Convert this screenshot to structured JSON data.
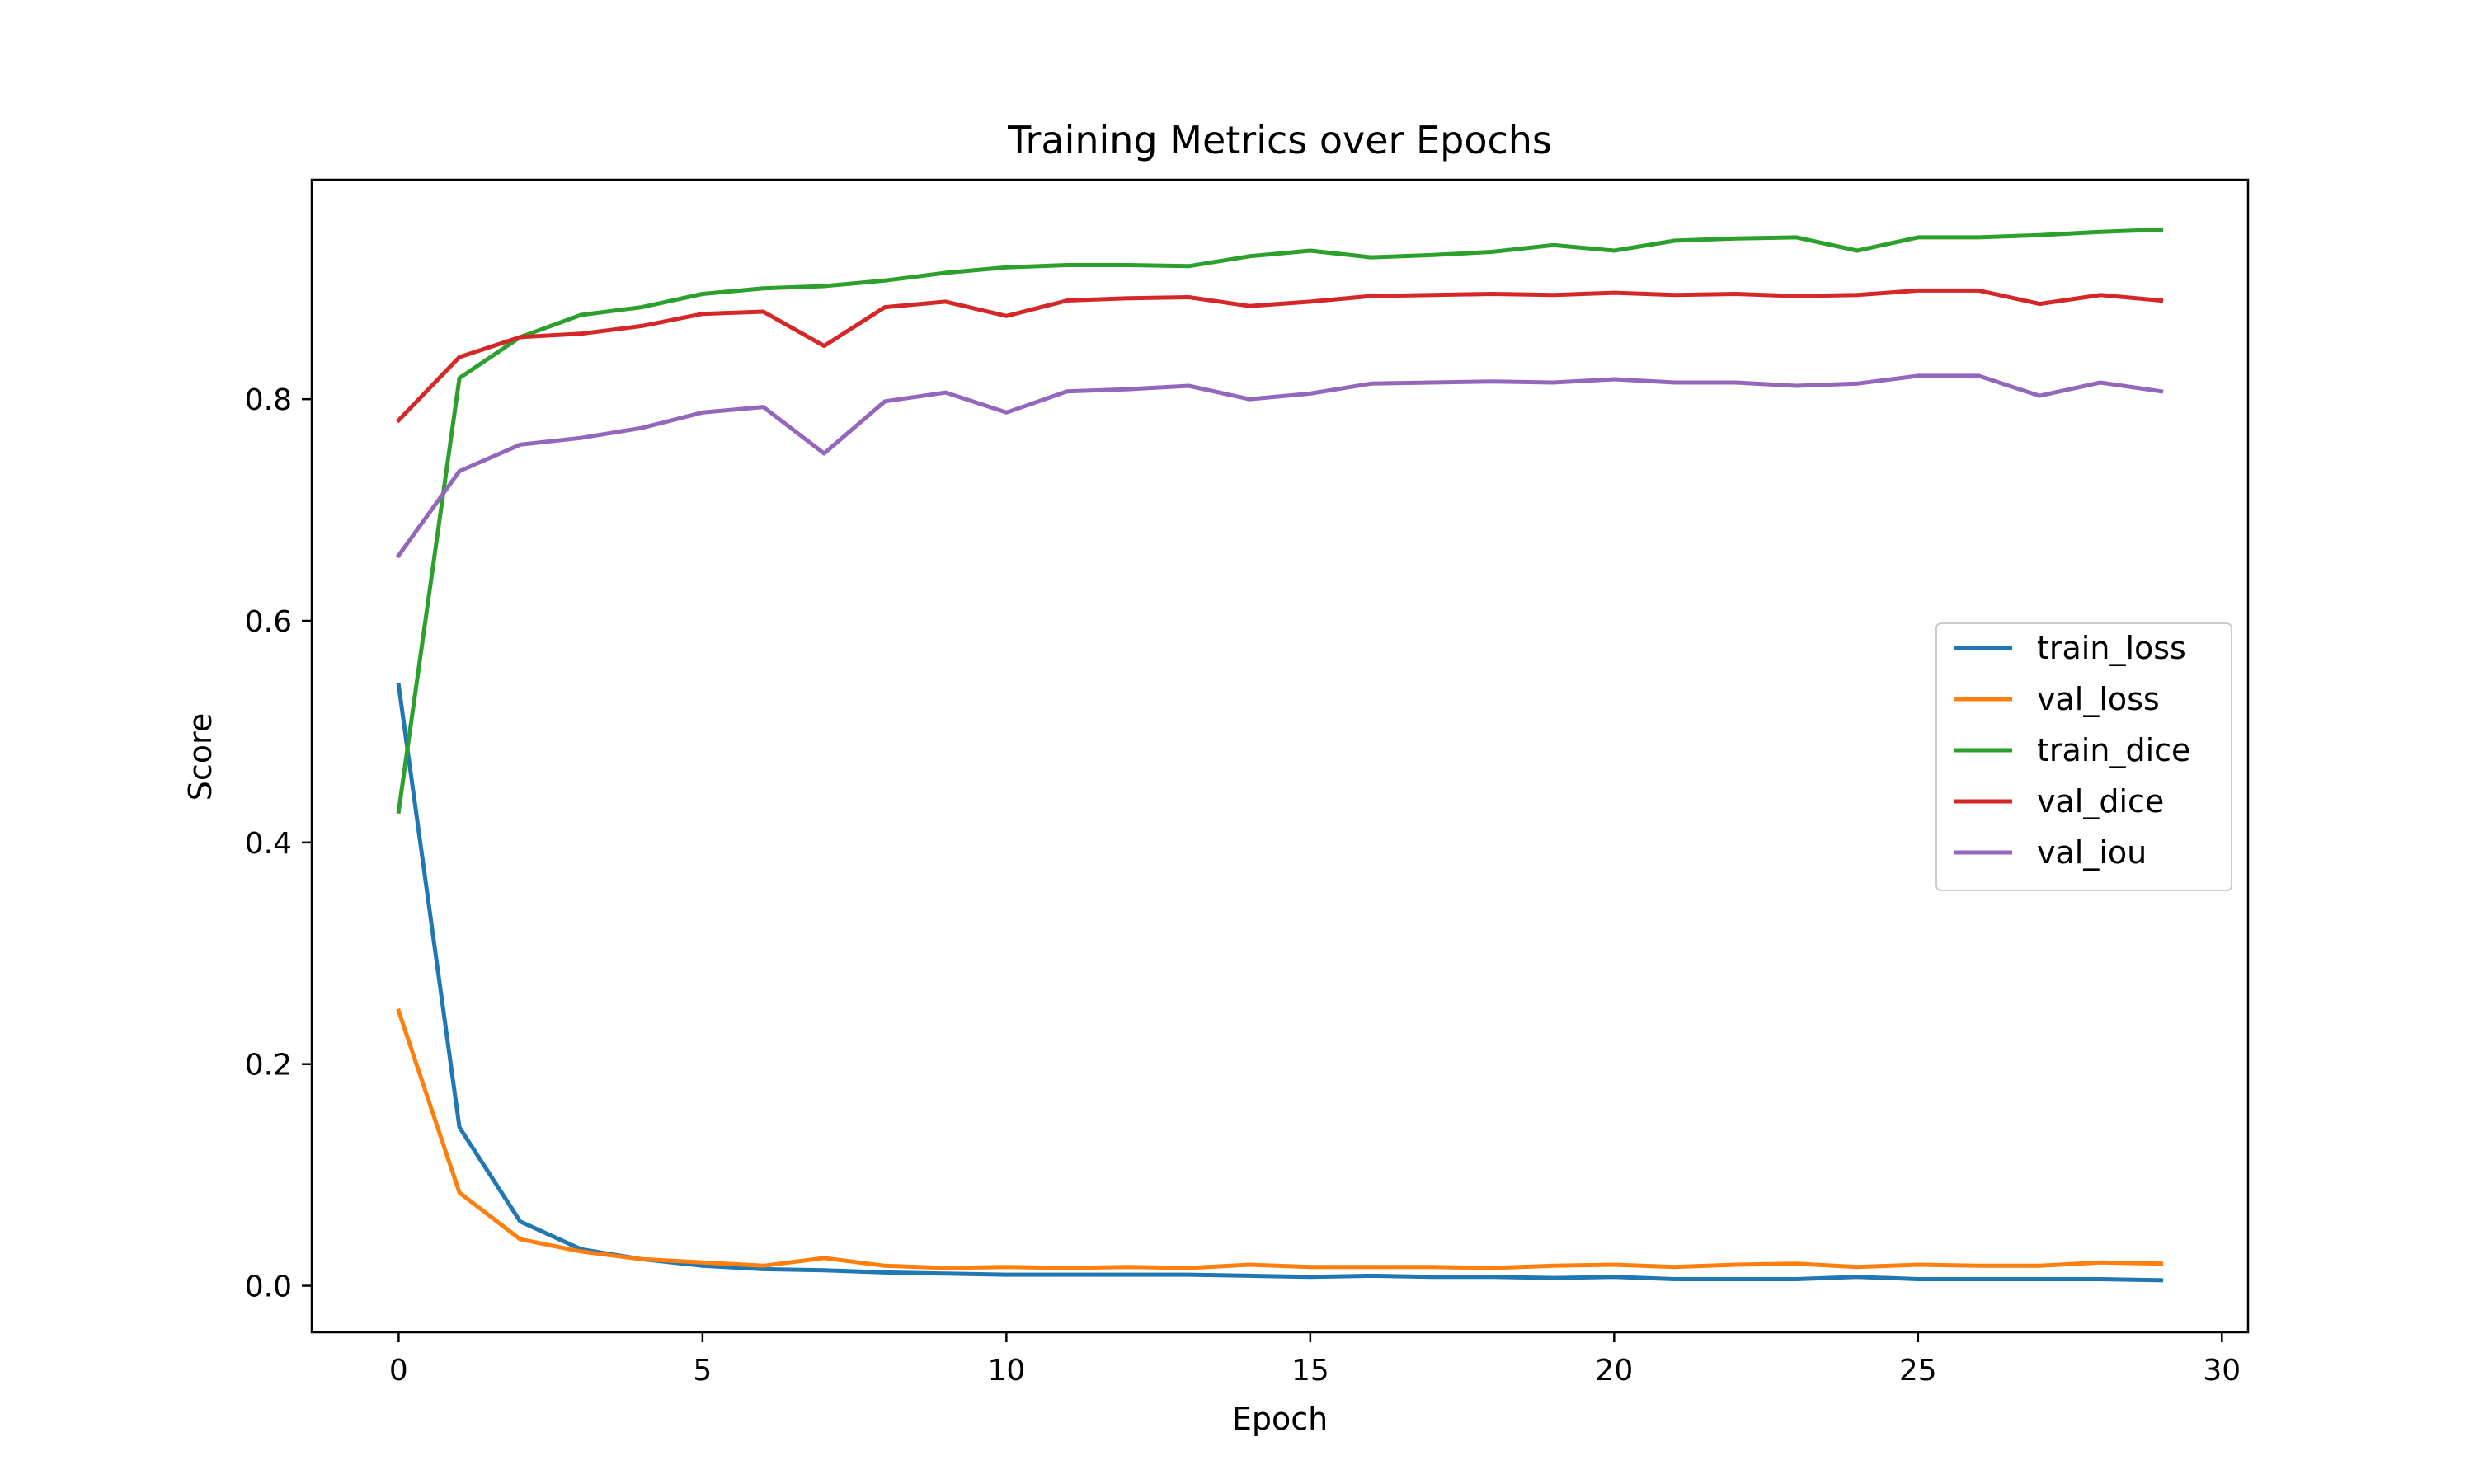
{
  "chart_data": {
    "type": "line",
    "title": "Training Metrics over Epochs",
    "xlabel": "Epoch",
    "ylabel": "Score",
    "xlim": [
      -1.43,
      30.43
    ],
    "ylim": [
      -0.042,
      0.998
    ],
    "xticks": [
      0,
      5,
      10,
      15,
      20,
      25,
      30
    ],
    "yticks": [
      0.0,
      0.2,
      0.4,
      0.6,
      0.8
    ],
    "xtick_labels": [
      "0",
      "5",
      "10",
      "15",
      "20",
      "25",
      "30"
    ],
    "ytick_labels": [
      "0.0",
      "0.2",
      "0.4",
      "0.6",
      "0.8"
    ],
    "grid": false,
    "legend_position": "center-right",
    "x": [
      0,
      1,
      2,
      3,
      4,
      5,
      6,
      7,
      8,
      9,
      10,
      11,
      12,
      13,
      14,
      15,
      16,
      17,
      18,
      19,
      20,
      21,
      22,
      23,
      24,
      25,
      26,
      27,
      28,
      29
    ],
    "series": [
      {
        "name": "train_loss",
        "color": "#1f77b4",
        "values": [
          0.542,
          0.143,
          0.058,
          0.033,
          0.024,
          0.018,
          0.015,
          0.014,
          0.012,
          0.011,
          0.01,
          0.01,
          0.01,
          0.01,
          0.009,
          0.008,
          0.009,
          0.008,
          0.008,
          0.007,
          0.008,
          0.006,
          0.006,
          0.006,
          0.008,
          0.006,
          0.006,
          0.006,
          0.006,
          0.005
        ]
      },
      {
        "name": "val_loss",
        "color": "#ff7f0e",
        "values": [
          0.248,
          0.084,
          0.042,
          0.031,
          0.024,
          0.021,
          0.018,
          0.025,
          0.018,
          0.016,
          0.017,
          0.016,
          0.017,
          0.016,
          0.019,
          0.017,
          0.017,
          0.017,
          0.016,
          0.018,
          0.019,
          0.017,
          0.019,
          0.02,
          0.017,
          0.019,
          0.018,
          0.018,
          0.021,
          0.02
        ]
      },
      {
        "name": "train_dice",
        "color": "#2ca02c",
        "values": [
          0.428,
          0.819,
          0.856,
          0.876,
          0.883,
          0.895,
          0.9,
          0.902,
          0.907,
          0.914,
          0.919,
          0.921,
          0.921,
          0.92,
          0.929,
          0.934,
          0.928,
          0.93,
          0.933,
          0.939,
          0.934,
          0.943,
          0.945,
          0.946,
          0.934,
          0.946,
          0.946,
          0.948,
          0.951,
          0.953
        ]
      },
      {
        "name": "val_dice",
        "color": "#d62728",
        "values": [
          0.781,
          0.838,
          0.856,
          0.859,
          0.866,
          0.877,
          0.879,
          0.848,
          0.883,
          0.888,
          0.875,
          0.889,
          0.891,
          0.892,
          0.884,
          0.888,
          0.893,
          0.894,
          0.895,
          0.894,
          0.896,
          0.894,
          0.895,
          0.893,
          0.894,
          0.898,
          0.898,
          0.886,
          0.894,
          0.889
        ]
      },
      {
        "name": "val_iou",
        "color": "#9467bd",
        "values": [
          0.659,
          0.735,
          0.759,
          0.765,
          0.774,
          0.788,
          0.793,
          0.751,
          0.798,
          0.806,
          0.788,
          0.807,
          0.809,
          0.812,
          0.8,
          0.805,
          0.814,
          0.815,
          0.816,
          0.815,
          0.818,
          0.815,
          0.815,
          0.812,
          0.814,
          0.821,
          0.821,
          0.803,
          0.815,
          0.807
        ]
      }
    ]
  }
}
